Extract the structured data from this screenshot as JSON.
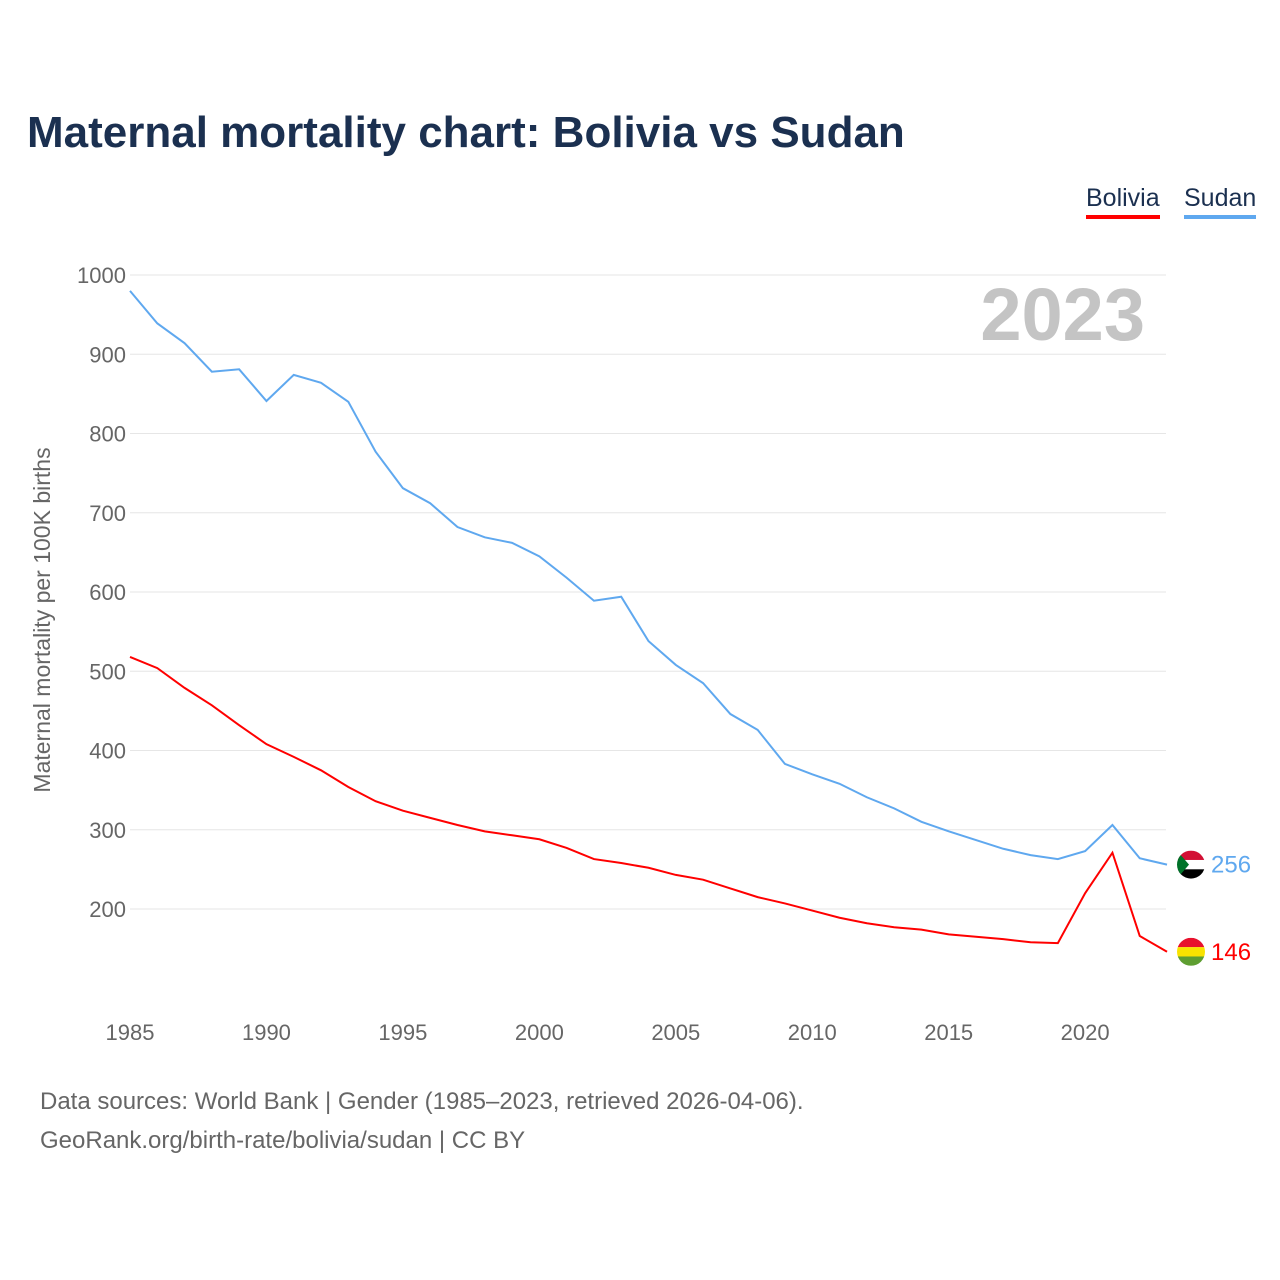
{
  "title": "Maternal mortality chart: Bolivia vs Sudan",
  "year_label": "2023",
  "footer": {
    "line1": "Data sources: World Bank | Gender (1985–2023, retrieved 2026-04-06).",
    "line2": "GeoRank.org/birth-rate/bolivia/sudan | CC BY"
  },
  "chart_data": {
    "type": "line",
    "title": "Maternal mortality chart: Bolivia vs Sudan",
    "xlabel": "",
    "ylabel": "Maternal mortality per 100K births",
    "xlim": [
      1985,
      2023
    ],
    "ylim": [
      100,
      1000
    ],
    "xticks": [
      "1985",
      "1990",
      "1995",
      "2000",
      "2005",
      "2010",
      "2015",
      "2020"
    ],
    "yticks": [
      "200",
      "300",
      "400",
      "500",
      "600",
      "700",
      "800",
      "900",
      "1000"
    ],
    "legend": "top-right",
    "x": [
      1985,
      1986,
      1987,
      1988,
      1989,
      1990,
      1991,
      1992,
      1993,
      1994,
      1995,
      1996,
      1997,
      1998,
      1999,
      2000,
      2001,
      2002,
      2003,
      2004,
      2005,
      2006,
      2007,
      2008,
      2009,
      2010,
      2011,
      2012,
      2013,
      2014,
      2015,
      2016,
      2017,
      2018,
      2019,
      2020,
      2021,
      2022,
      2023
    ],
    "series": [
      {
        "name": "Bolivia",
        "color": "#ff0000",
        "end_label": "146",
        "values": [
          518,
          504,
          479,
          457,
          432,
          408,
          392,
          375,
          354,
          336,
          324,
          315,
          306,
          298,
          293,
          288,
          277,
          263,
          258,
          252,
          243,
          237,
          226,
          215,
          207,
          198,
          189,
          182,
          177,
          174,
          168,
          165,
          162,
          158,
          157,
          220,
          271,
          166,
          146
        ]
      },
      {
        "name": "Sudan",
        "color": "#5fa8ef",
        "end_label": "256",
        "values": [
          980,
          939,
          914,
          878,
          881,
          841,
          874,
          864,
          840,
          777,
          731,
          712,
          682,
          669,
          662,
          645,
          618,
          589,
          594,
          538,
          508,
          485,
          446,
          426,
          383,
          370,
          358,
          341,
          327,
          310,
          298,
          287,
          276,
          268,
          263,
          273,
          306,
          264,
          256
        ]
      }
    ]
  }
}
